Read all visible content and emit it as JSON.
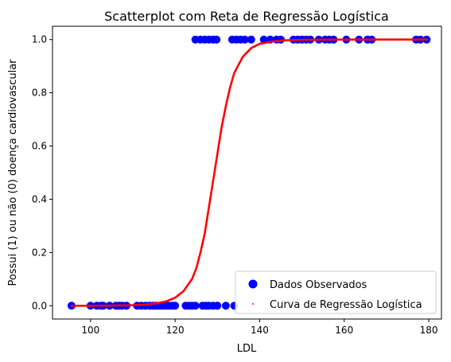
{
  "chart_data": {
    "type": "scatter",
    "title": "Scatterplot com Reta de Regressão Logística",
    "xlabel": "LDL",
    "ylabel": "Possui (1) ou não (0) doença cardiovascular",
    "xlim": [
      91,
      183
    ],
    "ylim": [
      -0.05,
      1.05
    ],
    "xticks": [
      100,
      120,
      140,
      160,
      180
    ],
    "yticks": [
      0.0,
      0.2,
      0.4,
      0.6,
      0.8,
      1.0
    ],
    "xtick_labels": [
      "100",
      "120",
      "140",
      "160",
      "180"
    ],
    "ytick_labels": [
      "0.0",
      "0.2",
      "0.4",
      "0.6",
      "0.8",
      "1.0"
    ],
    "grid": false,
    "legend_position": "lower-right",
    "series": [
      {
        "name": "Dados Observados",
        "kind": "scatter",
        "color": "#0000ff",
        "points": [
          [
            95.5,
            0
          ],
          [
            100.0,
            0
          ],
          [
            101.5,
            0
          ],
          [
            102.5,
            0
          ],
          [
            103.0,
            0
          ],
          [
            104.5,
            0
          ],
          [
            106.0,
            0
          ],
          [
            106.8,
            0
          ],
          [
            107.5,
            0
          ],
          [
            108.5,
            0
          ],
          [
            111.0,
            0
          ],
          [
            112.0,
            0
          ],
          [
            113.0,
            0
          ],
          [
            114.0,
            0
          ],
          [
            114.8,
            0
          ],
          [
            115.5,
            0
          ],
          [
            116.3,
            0
          ],
          [
            117.0,
            0
          ],
          [
            117.8,
            0
          ],
          [
            118.5,
            0
          ],
          [
            119.3,
            0
          ],
          [
            120.0,
            0
          ],
          [
            122.5,
            0
          ],
          [
            123.3,
            0
          ],
          [
            124.0,
            0
          ],
          [
            124.8,
            0
          ],
          [
            126.5,
            0
          ],
          [
            127.3,
            0
          ],
          [
            128.0,
            0
          ],
          [
            129.0,
            0
          ],
          [
            130.0,
            0
          ],
          [
            132.0,
            0
          ],
          [
            134.0,
            0
          ],
          [
            124.8,
            1
          ],
          [
            126.0,
            1
          ],
          [
            127.0,
            1
          ],
          [
            128.0,
            1
          ],
          [
            129.0,
            1
          ],
          [
            129.8,
            1
          ],
          [
            133.5,
            1
          ],
          [
            134.5,
            1
          ],
          [
            135.5,
            1
          ],
          [
            136.5,
            1
          ],
          [
            138.0,
            1
          ],
          [
            141.0,
            1
          ],
          [
            142.5,
            1
          ],
          [
            144.0,
            1
          ],
          [
            145.0,
            1
          ],
          [
            148.0,
            1
          ],
          [
            149.0,
            1
          ],
          [
            150.0,
            1
          ],
          [
            151.0,
            1
          ],
          [
            152.0,
            1
          ],
          [
            154.0,
            1
          ],
          [
            155.5,
            1
          ],
          [
            156.5,
            1
          ],
          [
            157.5,
            1
          ],
          [
            160.5,
            1
          ],
          [
            163.5,
            1
          ],
          [
            165.5,
            1
          ],
          [
            166.5,
            1
          ],
          [
            177.0,
            1
          ],
          [
            178.0,
            1
          ],
          [
            179.5,
            1
          ]
        ]
      },
      {
        "name": "Curva de Regressão Logística",
        "kind": "curve",
        "color": "#ff0000",
        "x": [
          95.5,
          100,
          105,
          110,
          113,
          116,
          118,
          120,
          122,
          124,
          125,
          126,
          127,
          128,
          129,
          130,
          131,
          132,
          133,
          134,
          136,
          138,
          140,
          143,
          146,
          150,
          160,
          170,
          179.5
        ],
        "y": [
          0.0,
          0.0,
          0.0005,
          0.002,
          0.004,
          0.01,
          0.017,
          0.03,
          0.055,
          0.1,
          0.14,
          0.2,
          0.27,
          0.37,
          0.47,
          0.57,
          0.67,
          0.75,
          0.82,
          0.875,
          0.935,
          0.968,
          0.984,
          0.993,
          0.997,
          0.999,
          1.0,
          1.0,
          1.0
        ]
      }
    ]
  }
}
